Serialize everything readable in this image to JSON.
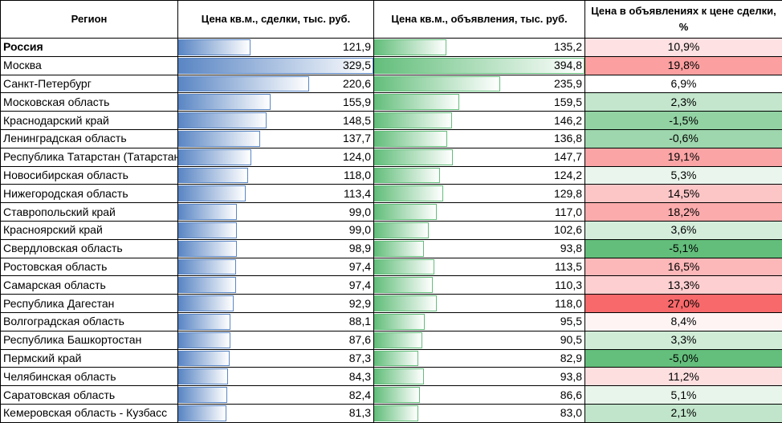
{
  "headers": {
    "region": "Регион",
    "deal_price": "Цена кв.м., сделки, тыс. руб.",
    "ad_price": "Цена кв.м., объявления, тыс. руб.",
    "ratio": "Цена в объявлениях к цене сделки, %"
  },
  "colors": {
    "bar_blue": "#5a86c4",
    "bar_green": "#63be7b",
    "scale_min": "#63be7b",
    "scale_mid": "#ffffff",
    "scale_max": "#f8696b"
  },
  "rows": [
    {
      "region": "Россия",
      "deal": "121,9",
      "ad": "135,2",
      "ratio": "10,9%",
      "bold": true
    },
    {
      "region": "Москва",
      "deal": "329,5",
      "ad": "394,8",
      "ratio": "19,8%"
    },
    {
      "region": "Санкт-Петербург",
      "deal": "220,6",
      "ad": "235,9",
      "ratio": "6,9%"
    },
    {
      "region": "Московская область",
      "deal": "155,9",
      "ad": "159,5",
      "ratio": "2,3%"
    },
    {
      "region": "Краснодарский край",
      "deal": "148,5",
      "ad": "146,2",
      "ratio": "-1,5%"
    },
    {
      "region": "Ленинградская область",
      "deal": "137,7",
      "ad": "136,8",
      "ratio": "-0,6%"
    },
    {
      "region": "Республика Татарстан (Татарстан)",
      "deal": "124,0",
      "ad": "147,7",
      "ratio": "19,1%"
    },
    {
      "region": "Новосибирская область",
      "deal": "118,0",
      "ad": "124,2",
      "ratio": "5,3%"
    },
    {
      "region": "Нижегородская область",
      "deal": "113,4",
      "ad": "129,8",
      "ratio": "14,5%"
    },
    {
      "region": "Ставропольский край",
      "deal": "99,0",
      "ad": "117,0",
      "ratio": "18,2%"
    },
    {
      "region": "Красноярский край",
      "deal": "99,0",
      "ad": "102,6",
      "ratio": "3,6%"
    },
    {
      "region": "Свердловская область",
      "deal": "98,9",
      "ad": "93,8",
      "ratio": "-5,1%"
    },
    {
      "region": "Ростовская область",
      "deal": "97,4",
      "ad": "113,5",
      "ratio": "16,5%"
    },
    {
      "region": "Самарская область",
      "deal": "97,4",
      "ad": "110,3",
      "ratio": "13,3%"
    },
    {
      "region": "Республика Дагестан",
      "deal": "92,9",
      "ad": "118,0",
      "ratio": "27,0%"
    },
    {
      "region": "Волгоградская область",
      "deal": "88,1",
      "ad": "95,5",
      "ratio": "8,4%"
    },
    {
      "region": "Республика Башкортостан",
      "deal": "87,6",
      "ad": "90,5",
      "ratio": "3,3%"
    },
    {
      "region": "Пермский край",
      "deal": "87,3",
      "ad": "82,9",
      "ratio": "-5,0%"
    },
    {
      "region": "Челябинская область",
      "deal": "84,3",
      "ad": "93,8",
      "ratio": "11,2%"
    },
    {
      "region": "Саратовская область",
      "deal": "82,4",
      "ad": "86,6",
      "ratio": "5,1%"
    },
    {
      "region": "Кемеровская область - Кузбасс",
      "deal": "81,3",
      "ad": "83,0",
      "ratio": "2,1%"
    }
  ]
}
